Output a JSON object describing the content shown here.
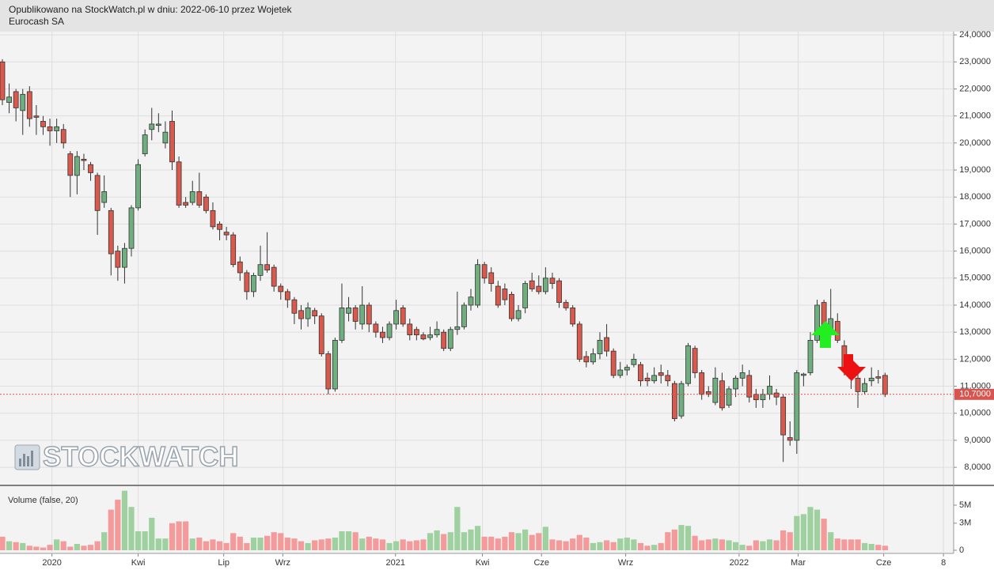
{
  "header": {
    "published": "Opublikowano na StockWatch.pl w dniu: 2022-06-10 przez Wojetek",
    "instrument": "Eurocash SA"
  },
  "chart_data": {
    "type": "candlestick",
    "watermark": "STOCKWATCH",
    "volume_label": "Volume (false, 20)",
    "up_color": "#6fae7f",
    "down_color": "#d95a4c",
    "volume_up_color": "#9fd09f",
    "volume_down_color": "#f59a9a",
    "grid": true,
    "last_price": {
      "value": 10.7,
      "label": "10,7000"
    },
    "open": [
      23.0,
      21.5,
      21.9,
      21.2,
      21.9,
      21.0,
      20.8,
      20.6,
      20.45,
      20.5,
      19.6,
      18.8,
      19.4,
      19.2,
      18.8,
      17.8,
      17.5,
      16.0,
      15.4,
      16.1,
      17.6,
      19.6,
      20.5,
      20.65,
      20.0,
      20.8,
      19.3,
      17.8,
      17.8,
      18.2,
      18.0,
      17.5,
      17.0,
      16.7,
      16.6,
      15.6,
      15.2,
      14.5,
      15.1,
      15.5,
      15.4,
      14.7,
      14.5,
      14.2,
      13.8,
      13.5,
      13.8,
      13.6,
      12.2,
      10.9,
      12.7,
      13.7,
      13.9,
      13.3,
      14.0,
      13.3,
      13.0,
      12.8,
      13.3,
      13.9,
      13.3,
      13.1,
      12.9,
      12.8,
      12.9,
      13.0,
      12.4,
      13.1,
      13.2,
      14.0,
      14.0,
      15.5,
      15.2,
      14.7,
      14.6,
      14.4,
      13.5,
      13.9,
      14.9,
      14.7,
      14.5,
      15.0,
      14.9,
      14.1,
      13.9,
      13.3,
      12.1,
      11.9,
      12.2,
      12.8,
      12.3,
      11.4,
      11.6,
      11.8,
      11.8,
      11.3,
      11.2,
      11.5,
      11.4,
      11.1,
      9.9,
      11.1,
      12.4,
      11.5,
      10.8,
      10.4,
      11.2,
      10.3,
      10.9,
      11.3,
      11.4,
      10.7,
      10.5,
      10.7,
      10.75,
      10.6,
      9.1,
      9.0,
      11.4,
      11.5,
      12.7,
      14.1,
      13.0,
      13.4,
      12.5,
      11.6,
      11.3,
      10.8,
      11.2,
      11.35,
      11.4
    ],
    "high": [
      23.1,
      22.2,
      22.0,
      22.0,
      22.1,
      21.4,
      21.0,
      20.9,
      20.9,
      20.7,
      19.7,
      19.7,
      19.6,
      19.3,
      18.9,
      18.8,
      17.6,
      16.2,
      16.3,
      17.7,
      19.4,
      20.5,
      21.3,
      21.1,
      20.8,
      21.2,
      19.5,
      18.0,
      18.6,
      18.9,
      18.1,
      17.8,
      17.1,
      16.9,
      16.7,
      15.8,
      15.3,
      15.2,
      16.2,
      16.7,
      15.5,
      14.8,
      14.6,
      14.3,
      14.0,
      14.1,
      13.9,
      13.7,
      12.3,
      12.8,
      14.8,
      14.3,
      14.0,
      14.7,
      14.1,
      13.4,
      13.2,
      13.4,
      14.2,
      14.0,
      13.5,
      13.2,
      13.0,
      13.2,
      13.4,
      13.1,
      13.2,
      14.5,
      14.1,
      14.6,
      15.7,
      15.6,
      15.4,
      14.9,
      14.8,
      14.5,
      14.0,
      14.9,
      15.2,
      15.1,
      15.4,
      15.2,
      15.0,
      14.2,
      14.0,
      13.4,
      12.3,
      12.4,
      13.0,
      13.3,
      12.4,
      11.9,
      11.8,
      12.2,
      11.9,
      11.5,
      11.7,
      11.8,
      11.6,
      11.2,
      11.2,
      12.6,
      12.5,
      11.6,
      11.0,
      11.7,
      11.5,
      11.0,
      11.4,
      11.8,
      11.6,
      10.9,
      10.9,
      11.4,
      10.9,
      10.7,
      9.7,
      11.6,
      11.5,
      13.0,
      14.2,
      14.2,
      14.6,
      13.7,
      12.7,
      11.8,
      11.5,
      11.3,
      11.7,
      11.6,
      11.5
    ],
    "low": [
      21.4,
      21.1,
      20.8,
      20.3,
      20.6,
      20.3,
      20.3,
      19.9,
      20.0,
      19.8,
      18.0,
      18.1,
      19.0,
      18.6,
      16.6,
      17.6,
      15.1,
      14.9,
      14.8,
      15.8,
      17.5,
      19.5,
      20.1,
      20.4,
      19.8,
      19.0,
      17.6,
      17.6,
      17.7,
      17.6,
      17.4,
      16.8,
      16.4,
      16.4,
      15.4,
      14.9,
      14.2,
      14.3,
      14.9,
      15.2,
      14.5,
      14.2,
      13.9,
      13.3,
      13.1,
      13.2,
      13.3,
      12.1,
      10.7,
      10.8,
      12.6,
      13.4,
      13.1,
      13.1,
      13.0,
      12.8,
      12.6,
      12.7,
      13.1,
      13.2,
      12.7,
      12.7,
      12.7,
      12.7,
      12.8,
      12.3,
      12.3,
      12.9,
      13.1,
      13.8,
      13.9,
      14.8,
      14.5,
      13.9,
      14.0,
      13.4,
      13.4,
      13.7,
      14.5,
      14.4,
      14.4,
      14.6,
      13.9,
      13.8,
      13.2,
      11.9,
      11.7,
      11.8,
      12.0,
      12.1,
      11.3,
      11.3,
      11.4,
      11.7,
      11.0,
      11.0,
      11.1,
      11.1,
      11.0,
      9.7,
      9.8,
      11.0,
      11.3,
      10.5,
      10.6,
      10.3,
      10.1,
      10.2,
      10.6,
      11.0,
      10.4,
      10.2,
      10.2,
      10.5,
      10.3,
      8.2,
      8.8,
      8.5,
      11.0,
      11.4,
      12.6,
      12.5,
      12.8,
      12.6,
      11.4,
      10.9,
      10.2,
      10.7,
      11.0,
      11.1,
      10.6
    ],
    "close": [
      21.6,
      21.7,
      21.3,
      21.8,
      20.9,
      20.95,
      20.6,
      20.45,
      20.6,
      20.0,
      18.8,
      19.5,
      19.35,
      18.9,
      17.5,
      18.2,
      15.9,
      15.4,
      16.1,
      17.6,
      19.2,
      20.3,
      20.7,
      20.7,
      20.4,
      19.3,
      17.7,
      17.7,
      18.2,
      17.7,
      17.5,
      16.9,
      16.8,
      16.6,
      15.5,
      15.2,
      14.5,
      15.1,
      15.5,
      15.3,
      14.7,
      14.5,
      14.2,
      13.7,
      13.5,
      13.9,
      13.6,
      12.2,
      10.9,
      12.7,
      13.9,
      13.9,
      13.4,
      14.0,
      13.3,
      13.0,
      12.8,
      13.3,
      13.8,
      13.3,
      12.9,
      12.9,
      12.75,
      12.9,
      13.1,
      12.4,
      13.1,
      13.2,
      14.0,
      14.3,
      15.5,
      15.0,
      14.8,
      14.0,
      14.2,
      13.5,
      13.8,
      14.8,
      14.6,
      14.5,
      15.0,
      14.8,
      14.1,
      13.9,
      13.3,
      12.0,
      11.9,
      12.2,
      12.7,
      12.3,
      11.4,
      11.6,
      11.7,
      12.0,
      11.2,
      11.2,
      11.4,
      11.4,
      11.2,
      9.8,
      11.1,
      12.5,
      11.5,
      10.7,
      10.7,
      11.3,
      10.2,
      10.9,
      11.3,
      11.5,
      10.6,
      10.5,
      10.7,
      11.0,
      10.6,
      9.2,
      9.0,
      11.5,
      11.45,
      12.7,
      14.0,
      13.0,
      13.5,
      12.7,
      11.6,
      11.3,
      10.8,
      11.1,
      11.3,
      11.3,
      10.7
    ],
    "volume": [
      1500000,
      1000000,
      900000,
      800000,
      500000,
      400000,
      300000,
      600000,
      1200000,
      1000000,
      400000,
      700000,
      500000,
      600000,
      1000000,
      2000000,
      4500000,
      5600000,
      6600000,
      4800000,
      2100000,
      2100000,
      3600000,
      1300000,
      1300000,
      3000000,
      3200000,
      3200000,
      1300000,
      1400000,
      1000000,
      1200000,
      1000000,
      800000,
      1900000,
      1500000,
      800000,
      1400000,
      1400000,
      1600000,
      2000000,
      1900000,
      1400000,
      1300000,
      1000000,
      800000,
      1100000,
      1200000,
      1300000,
      1400000,
      2100000,
      2100000,
      2000000,
      1300000,
      1500000,
      1300000,
      1200000,
      800000,
      1000000,
      1200000,
      1000000,
      1100000,
      1200000,
      1900000,
      2200000,
      1800000,
      2000000,
      4800000,
      2000000,
      2300000,
      2700000,
      1500000,
      1500000,
      1300000,
      1500000,
      2000000,
      1900000,
      2300000,
      1700000,
      1900000,
      2600000,
      1200000,
      1100000,
      1000000,
      1300000,
      1700000,
      1400000,
      800000,
      900000,
      1100000,
      900000,
      1300000,
      1400000,
      1200000,
      800000,
      500000,
      600000,
      800000,
      2000000,
      2300000,
      2800000,
      2700000,
      1600000,
      1100000,
      1200000,
      1300000,
      1200000,
      1100000,
      900000,
      600000,
      500000,
      1100000,
      1000000,
      1200000,
      1100000,
      2200000,
      2000000,
      3800000,
      4000000,
      4800000,
      4500000,
      3500000,
      2000000,
      1300000,
      1200000,
      1200000,
      1200000,
      800000,
      700000,
      600000,
      500000
    ],
    "xlim": [
      -0.35,
      140.1
    ],
    "xticks": [
      {
        "value": 7.3,
        "label": "2020"
      },
      {
        "value": 20.0,
        "label": "Kwi"
      },
      {
        "value": 32.6,
        "label": "Lip"
      },
      {
        "value": 41.3,
        "label": "Wrz"
      },
      {
        "value": 57.9,
        "label": "2021"
      },
      {
        "value": 70.7,
        "label": "Kwi"
      },
      {
        "value": 79.4,
        "label": "Cze"
      },
      {
        "value": 91.8,
        "label": "Wrz"
      },
      {
        "value": 108.5,
        "label": "2022"
      },
      {
        "value": 117.2,
        "label": "Mar"
      },
      {
        "value": 129.8,
        "label": "Cze"
      },
      {
        "value": 138.6,
        "label": "8"
      }
    ],
    "ylim": [
      7.36,
      24.12
    ],
    "yticks": [
      {
        "value": 8,
        "label": "8,0000"
      },
      {
        "value": 9,
        "label": "9,0000"
      },
      {
        "value": 10,
        "label": "10,0000"
      },
      {
        "value": 11,
        "label": "11,0000"
      },
      {
        "value": 12,
        "label": "12,0000"
      },
      {
        "value": 13,
        "label": "13,0000"
      },
      {
        "value": 14,
        "label": "14,0000"
      },
      {
        "value": 15,
        "label": "15,0000"
      },
      {
        "value": 16,
        "label": "16,0000"
      },
      {
        "value": 17,
        "label": "17,0000"
      },
      {
        "value": 18,
        "label": "18,0000"
      },
      {
        "value": 19,
        "label": "19,0000"
      },
      {
        "value": 20,
        "label": "20,0000"
      },
      {
        "value": 21,
        "label": "21,0000"
      },
      {
        "value": 22,
        "label": "22,0000"
      },
      {
        "value": 23,
        "label": "23,0000"
      },
      {
        "value": 24,
        "label": "24,0000"
      }
    ],
    "y2lim": [
      -350000,
      7100000
    ],
    "y2ticks": [
      {
        "value": 0,
        "label": "0"
      },
      {
        "value": 3000000,
        "label": "3M"
      },
      {
        "value": 5000000,
        "label": "5M"
      }
    ]
  }
}
